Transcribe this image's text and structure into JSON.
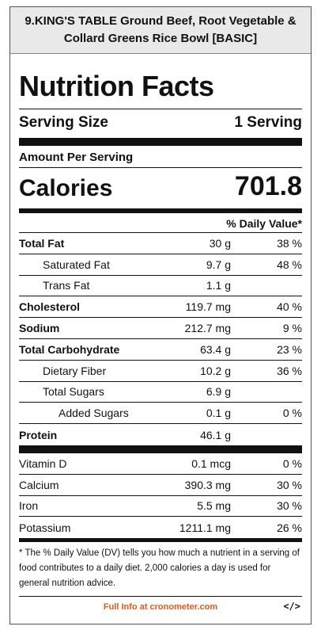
{
  "product": {
    "title": "9.KING'S TABLE Ground Beef, Root Vegetable & Collard Greens Rice Bowl [BASIC]"
  },
  "label": {
    "heading": "Nutrition Facts",
    "serving_size_label": "Serving Size",
    "serving_size_value": "1 Serving",
    "amount_per_serving": "Amount Per Serving",
    "calories_label": "Calories",
    "calories_value": "701.8",
    "daily_value_header": "% Daily Value*"
  },
  "nutrients": [
    {
      "name": "Total Fat",
      "amount": "30 g",
      "dv": "38 %"
    },
    {
      "name": "Saturated Fat",
      "amount": "9.7 g",
      "dv": "48 %"
    },
    {
      "name": "Trans Fat",
      "amount": "1.1 g",
      "dv": ""
    },
    {
      "name": "Cholesterol",
      "amount": "119.7 mg",
      "dv": "40 %"
    },
    {
      "name": "Sodium",
      "amount": "212.7 mg",
      "dv": "9 %"
    },
    {
      "name": "Total Carbohydrate",
      "amount": "63.4 g",
      "dv": "23 %"
    },
    {
      "name": "Dietary Fiber",
      "amount": "10.2 g",
      "dv": "36 %"
    },
    {
      "name": "Total Sugars",
      "amount": "6.9 g",
      "dv": ""
    },
    {
      "name": "Added Sugars",
      "amount": "0.1 g",
      "dv": "0 %"
    },
    {
      "name": "Protein",
      "amount": "46.1 g",
      "dv": ""
    }
  ],
  "vitamins": [
    {
      "name": "Vitamin D",
      "amount": "0.1 mcg",
      "dv": "0 %"
    },
    {
      "name": "Calcium",
      "amount": "390.3 mg",
      "dv": "30 %"
    },
    {
      "name": "Iron",
      "amount": "5.5 mg",
      "dv": "30 %"
    },
    {
      "name": "Potassium",
      "amount": "1211.1 mg",
      "dv": "26 %"
    }
  ],
  "footnote": "* The % Daily Value (DV) tells you how much a nutrient in a serving of food contributes to a daily diet. 2,000 calories a day is used for general nutrition advice.",
  "footer": {
    "link_text": "Full Info at cronometer.com",
    "embed_text": "</>",
    "link_color": "#e05a1e"
  }
}
